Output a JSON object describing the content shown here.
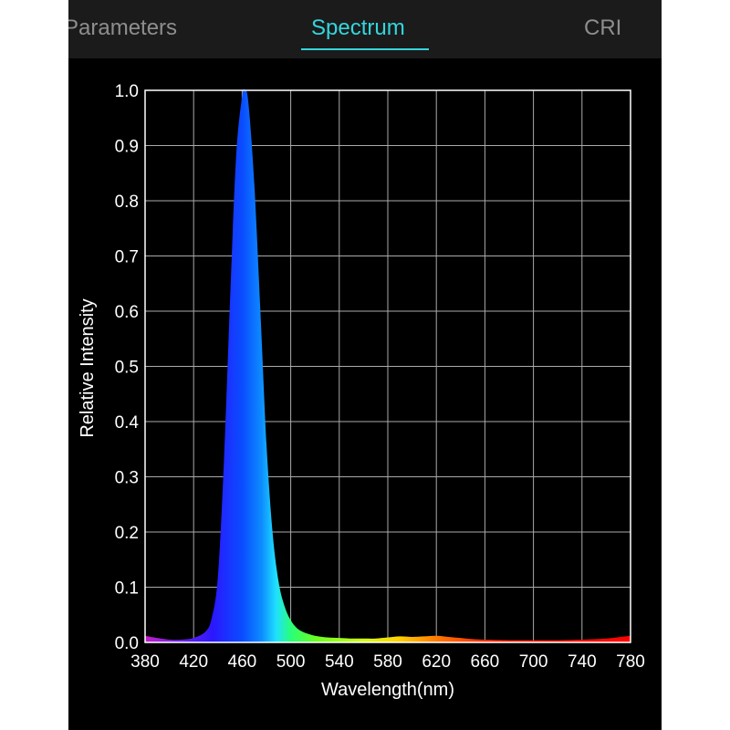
{
  "tabs": [
    {
      "id": "parameters",
      "label": "Parameters",
      "active": false
    },
    {
      "id": "spectrum",
      "label": "Spectrum",
      "active": true
    },
    {
      "id": "cri",
      "label": "CRI",
      "active": false
    }
  ],
  "colors": {
    "background": "#000000",
    "tabbar": "#1b1b1b",
    "tab_inactive": "#8e8e8e",
    "tab_active": "#34d6dd",
    "grid": "#aaaaaa",
    "text": "#ffffff"
  },
  "chart_data": {
    "type": "area",
    "title": "",
    "xlabel": "Wavelength(nm)",
    "ylabel": "Relative Intensity",
    "xlim": [
      380,
      780
    ],
    "ylim": [
      0,
      1.0
    ],
    "grid": true,
    "x_ticks": [
      "380",
      "420",
      "460",
      "500",
      "540",
      "580",
      "620",
      "660",
      "700",
      "740",
      "780"
    ],
    "y_ticks": [
      "0.0",
      "0.1",
      "0.2",
      "0.3",
      "0.4",
      "0.5",
      "0.6",
      "0.7",
      "0.8",
      "0.9",
      "1.0"
    ],
    "fill": "visible-spectrum-gradient",
    "series": [
      {
        "x": [
          380,
          390,
          400,
          410,
          420,
          430,
          435,
          440,
          445,
          450,
          455,
          460,
          462,
          465,
          470,
          475,
          480,
          485,
          490,
          495,
          500,
          505,
          510,
          515,
          520,
          530,
          540,
          550,
          560,
          570,
          580,
          590,
          600,
          610,
          620,
          630,
          640,
          650,
          660,
          680,
          700,
          720,
          740,
          760,
          780
        ],
        "values": [
          0.012,
          0.008,
          0.005,
          0.005,
          0.008,
          0.02,
          0.045,
          0.12,
          0.33,
          0.62,
          0.88,
          0.99,
          1.0,
          0.98,
          0.83,
          0.6,
          0.36,
          0.2,
          0.11,
          0.065,
          0.04,
          0.026,
          0.019,
          0.015,
          0.012,
          0.009,
          0.008,
          0.007,
          0.007,
          0.007,
          0.009,
          0.011,
          0.01,
          0.011,
          0.012,
          0.01,
          0.008,
          0.006,
          0.005,
          0.004,
          0.004,
          0.004,
          0.005,
          0.007,
          0.012
        ]
      }
    ]
  }
}
